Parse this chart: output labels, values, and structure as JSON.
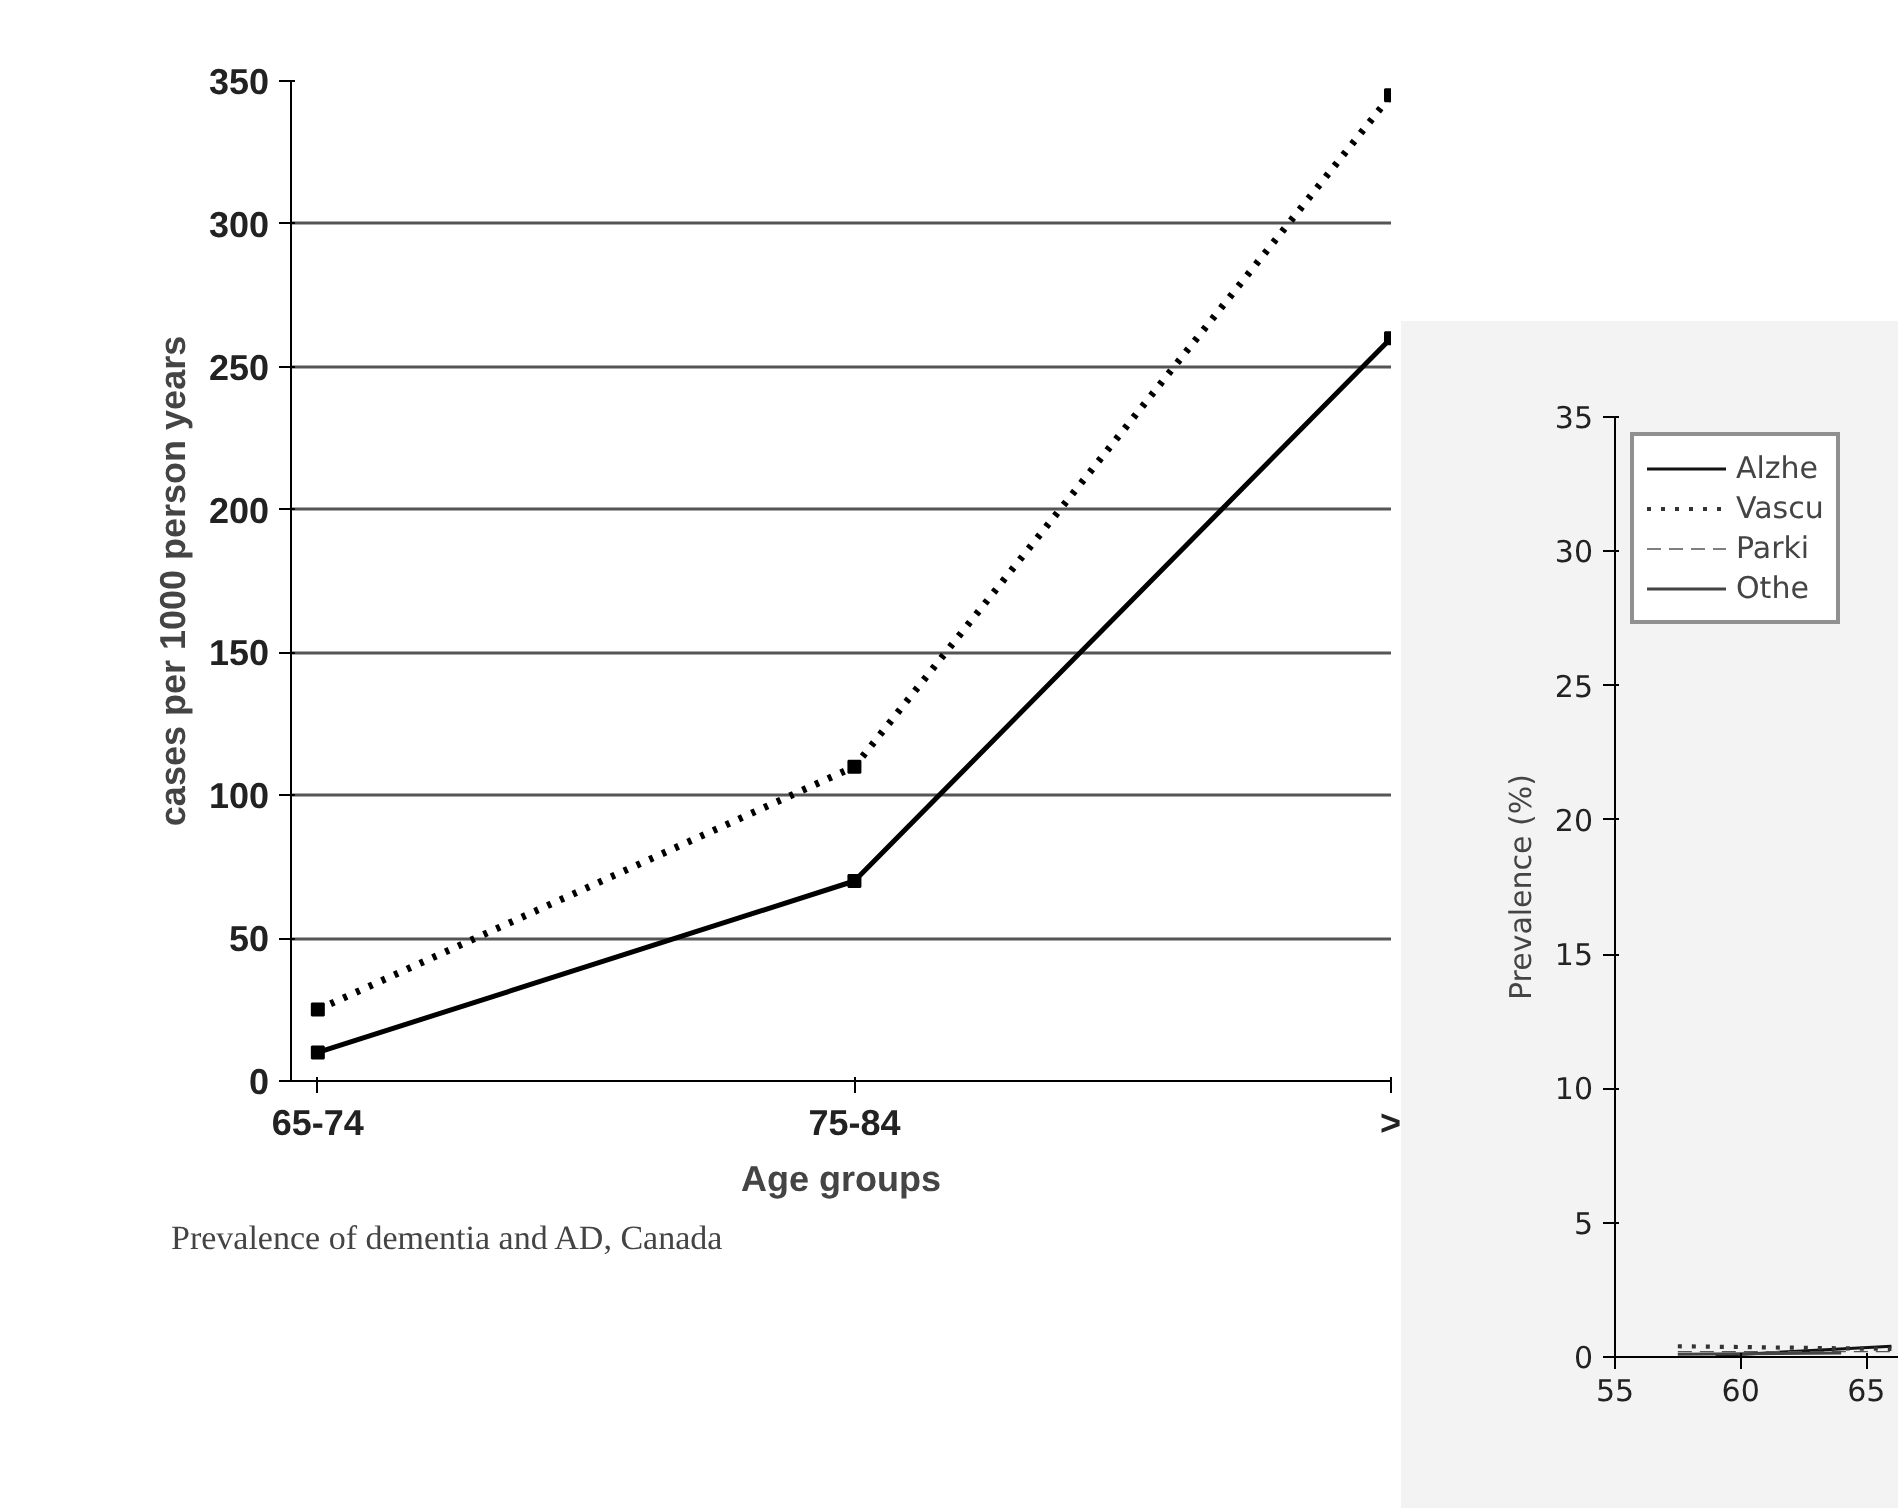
{
  "chart_data": [
    {
      "type": "line",
      "categories": [
        "65-74",
        "75-84",
        ">"
      ],
      "xlabel": "Age groups",
      "ylabel": "cases per 1000 person years",
      "ylim": [
        0,
        350
      ],
      "yticks": [
        0,
        50,
        100,
        150,
        200,
        250,
        300,
        350
      ],
      "grid": "y",
      "legend": false,
      "marker": "square",
      "annotations": [
        "Prevalence of dementia and AD, Canada"
      ],
      "series": [
        {
          "color": "#000000",
          "line_style": "solid",
          "values": [
            10,
            70,
            260
          ]
        },
        {
          "color": "#000000",
          "line_style": "dotted",
          "values": [
            25,
            110,
            345
          ]
        }
      ]
    },
    {
      "type": "line",
      "ylabel": "Prevalence (%)",
      "xlim": [
        55,
        66.3
      ],
      "xticks": [
        55,
        60,
        65
      ],
      "ylim": [
        0,
        35
      ],
      "yticks": [
        0,
        5,
        10,
        15,
        20,
        25,
        30,
        35
      ],
      "grid": false,
      "legend": "top left",
      "marker": "none",
      "series": [
        {
          "name": "Alzhe",
          "color": "#111111",
          "line_style": "solid",
          "x": [
            59,
            66
          ],
          "values": [
            0.05,
            0.4
          ]
        },
        {
          "name": "Vascu",
          "color": "#333333",
          "line_style": "dotted",
          "x": [
            57.5,
            66
          ],
          "values": [
            0.4,
            0.3
          ]
        },
        {
          "name": "Parki",
          "color": "#555555",
          "line_style": "dashed",
          "x": [
            57.5,
            66
          ],
          "values": [
            0.2,
            0.2
          ]
        },
        {
          "name": "Othe",
          "color": "#444444",
          "line_style": "solid",
          "x": [
            57.5,
            64
          ],
          "values": [
            0.1,
            0.15
          ]
        }
      ]
    }
  ]
}
